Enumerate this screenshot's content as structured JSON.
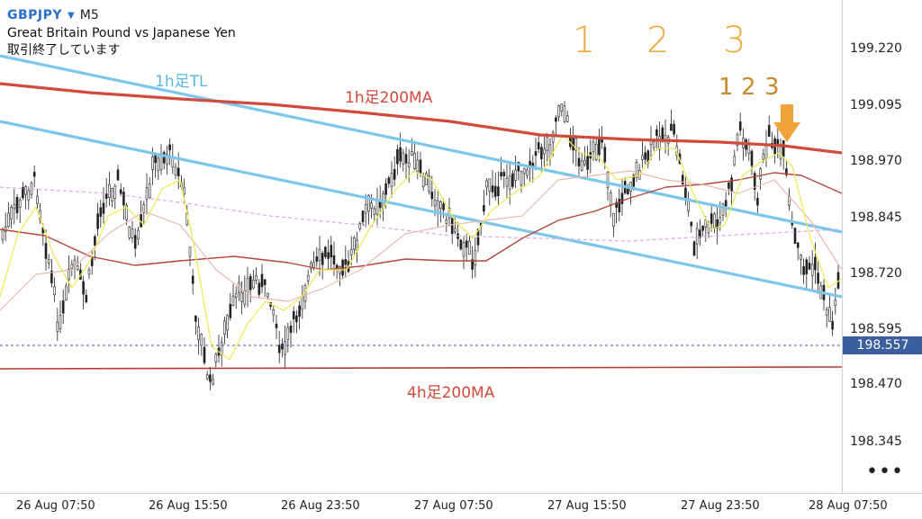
{
  "header": {
    "symbol": "GBPJPY",
    "timeframe": "M5",
    "description": "Great Britain Pound vs Japanese Yen",
    "status": "取引終了しています"
  },
  "annotations": {
    "big": [
      "1",
      "2",
      "3"
    ],
    "small": [
      "1",
      "2",
      "3"
    ],
    "tl_label": "1h足TL",
    "ma1h_label": "1h足200MA",
    "ma4h_label": "4h足200MA"
  },
  "price_scale": {
    "ticks": [
      "199.220",
      "199.095",
      "198.970",
      "198.845",
      "198.720",
      "198.595",
      "198.470",
      "198.345"
    ],
    "current": "198.557"
  },
  "time_scale": {
    "ticks": [
      "26 Aug 07:50",
      "26 Aug 15:50",
      "26 Aug 23:50",
      "27 Aug 07:50",
      "27 Aug 15:50",
      "27 Aug 23:50",
      "28 Aug 07:50"
    ]
  },
  "menu": {
    "more_label": "•••"
  },
  "colors": {
    "symbol": "#2a6fcf",
    "candles": "#222222",
    "trendline": "#7cc6ea",
    "ma_1h_200": "#d14a3c",
    "ma_4h_200": "#b83a2e",
    "ma_short": "#f0e85a",
    "ma_mid": "#e9b8b0",
    "ma_dashed": "#d9a6e6",
    "ma_long": "#b5473b",
    "arrow": "#f2a23a",
    "current_price_bg": "#3b5e9e"
  },
  "icons": {
    "dropdown": "triangle-down-icon",
    "arrow": "down-arrow-icon",
    "more": "ellipsis-icon"
  }
}
